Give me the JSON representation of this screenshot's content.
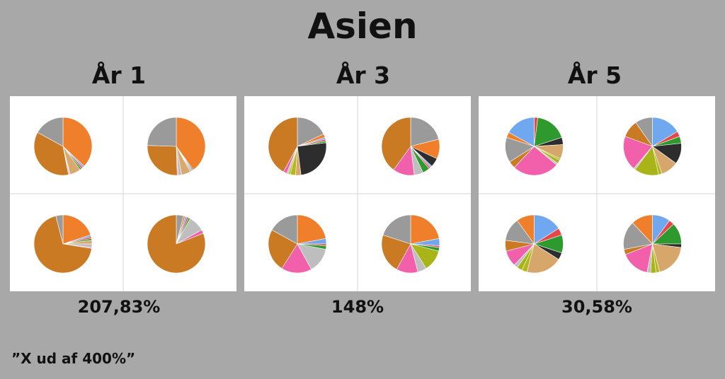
{
  "title": "Asien",
  "footnote": "”X ud af 400%”",
  "colors": {
    "Orange": "#f07f2b",
    "Grey": "#9a9a9a",
    "Ochre": "#c97a22",
    "Black": "#2d2d2d",
    "Blue": "#6fa8ef",
    "Red": "#e54848",
    "Green": "#2e9a2e",
    "Navy": "#bebebe",
    "Pink": "#f25fab",
    "Brown": "#d6a66a",
    "Olive": "#b3b81c",
    "Yellow": "#a8b418",
    "Tan": "#d9a86c"
  },
  "groups": [
    {
      "year": "År 1",
      "percent": "207,83%",
      "charts": [
        {
          "segments": [
            [
              "Orange",
              37
            ],
            [
              "Blue",
              1
            ],
            [
              "Red",
              1
            ],
            [
              "Green",
              1
            ],
            [
              "Tan",
              6
            ],
            [
              "Navy",
              0.5
            ],
            [
              "Pink",
              0.5
            ],
            [
              "Ochre",
              36
            ],
            [
              "Grey",
              17
            ]
          ]
        },
        {
          "segments": [
            [
              "Orange",
              40
            ],
            [
              "Black",
              0.5
            ],
            [
              "Blue",
              0.5
            ],
            [
              "Red",
              0.5
            ],
            [
              "Green",
              0.5
            ],
            [
              "Tan",
              5
            ],
            [
              "Navy",
              2
            ],
            [
              "Pink",
              0.5
            ],
            [
              "Ochre",
              26
            ],
            [
              "Grey",
              24.5
            ]
          ]
        },
        {
          "segments": [
            [
              "Orange",
              20
            ],
            [
              "Blue",
              1
            ],
            [
              "Red",
              1
            ],
            [
              "Green",
              1
            ],
            [
              "Tan",
              2
            ],
            [
              "Navy",
              2
            ],
            [
              "Pink",
              0.5
            ],
            [
              "Ochre",
              68.5
            ],
            [
              "Grey",
              4
            ]
          ]
        },
        {
          "segments": [
            [
              "Grey",
              4
            ],
            [
              "Orange",
              1
            ],
            [
              "Blue",
              1
            ],
            [
              "Red",
              1
            ],
            [
              "Green",
              1
            ],
            [
              "Navy",
              9
            ],
            [
              "Pink",
              2
            ],
            [
              "Ochre",
              81
            ]
          ]
        }
      ]
    },
    {
      "year": "År 3",
      "percent": "148%",
      "charts": [
        {
          "segments": [
            [
              "Grey",
              18
            ],
            [
              "Orange",
              2
            ],
            [
              "Blue",
              1
            ],
            [
              "Red",
              1
            ],
            [
              "Green",
              1
            ],
            [
              "Black",
              25
            ],
            [
              "Brown",
              3
            ],
            [
              "Olive",
              3
            ],
            [
              "Yellow",
              1
            ],
            [
              "Navy",
              1
            ],
            [
              "Pink",
              2
            ],
            [
              "Ochre",
              42
            ]
          ]
        },
        {
          "segments": [
            [
              "Grey",
              21
            ],
            [
              "Orange",
              11
            ],
            [
              "Black",
              5
            ],
            [
              "Blue",
              1
            ],
            [
              "Red",
              1
            ],
            [
              "Green",
              4
            ],
            [
              "Navy",
              5
            ],
            [
              "Pink",
              12
            ],
            [
              "Ochre",
              40
            ]
          ]
        },
        {
          "segments": [
            [
              "Orange",
              22
            ],
            [
              "Blue",
              3
            ],
            [
              "Red",
              1
            ],
            [
              "Green",
              2
            ],
            [
              "Navy",
              14
            ],
            [
              "Pink",
              17
            ],
            [
              "Ochre",
              24
            ],
            [
              "Grey",
              17
            ]
          ]
        },
        {
          "segments": [
            [
              "Orange",
              22
            ],
            [
              "Blue",
              4
            ],
            [
              "Red",
              1
            ],
            [
              "Green",
              2
            ],
            [
              "Yellow",
              12
            ],
            [
              "Navy",
              5
            ],
            [
              "Pink",
              12
            ],
            [
              "Ochre",
              22
            ],
            [
              "Grey",
              20
            ]
          ]
        }
      ]
    },
    {
      "year": "År 5",
      "percent": "30,58%",
      "charts": [
        {
          "segments": [
            [
              "Red",
              2
            ],
            [
              "Green",
              18
            ],
            [
              "Black",
              4
            ],
            [
              "Brown",
              8
            ],
            [
              "Olive",
              1
            ],
            [
              "Yellow",
              2
            ],
            [
              "Navy",
              1
            ],
            [
              "Pink",
              26
            ],
            [
              "Ochre",
              4
            ],
            [
              "Grey",
              14
            ],
            [
              "Orange",
              3
            ],
            [
              "Blue",
              17
            ]
          ]
        },
        {
          "segments": [
            [
              "Blue",
              17
            ],
            [
              "Red",
              3
            ],
            [
              "Green",
              4
            ],
            [
              "Black",
              12
            ],
            [
              "Brown",
              10
            ],
            [
              "Olive",
              2
            ],
            [
              "Yellow",
              14
            ],
            [
              "Navy",
              1
            ],
            [
              "Pink",
              20
            ],
            [
              "Ochre",
              10
            ],
            [
              "Grey",
              10
            ]
          ]
        },
        {
          "segments": [
            [
              "Blue",
              16
            ],
            [
              "Red",
              4
            ],
            [
              "Green",
              10
            ],
            [
              "Black",
              4
            ],
            [
              "Brown",
              20
            ],
            [
              "Olive",
              3
            ],
            [
              "Yellow",
              3
            ],
            [
              "Navy",
              2
            ],
            [
              "Pink",
              9
            ],
            [
              "Ochre",
              6
            ],
            [
              "Grey",
              13
            ],
            [
              "Orange",
              10
            ]
          ]
        },
        {
          "segments": [
            [
              "Blue",
              10
            ],
            [
              "Red",
              3
            ],
            [
              "Green",
              12
            ],
            [
              "Black",
              2
            ],
            [
              "Brown",
              19
            ],
            [
              "Olive",
              2
            ],
            [
              "Yellow",
              3
            ],
            [
              "Navy",
              2
            ],
            [
              "Pink",
              16
            ],
            [
              "Ochre",
              3
            ],
            [
              "Grey",
              16
            ],
            [
              "Orange",
              12
            ]
          ]
        }
      ]
    }
  ]
}
